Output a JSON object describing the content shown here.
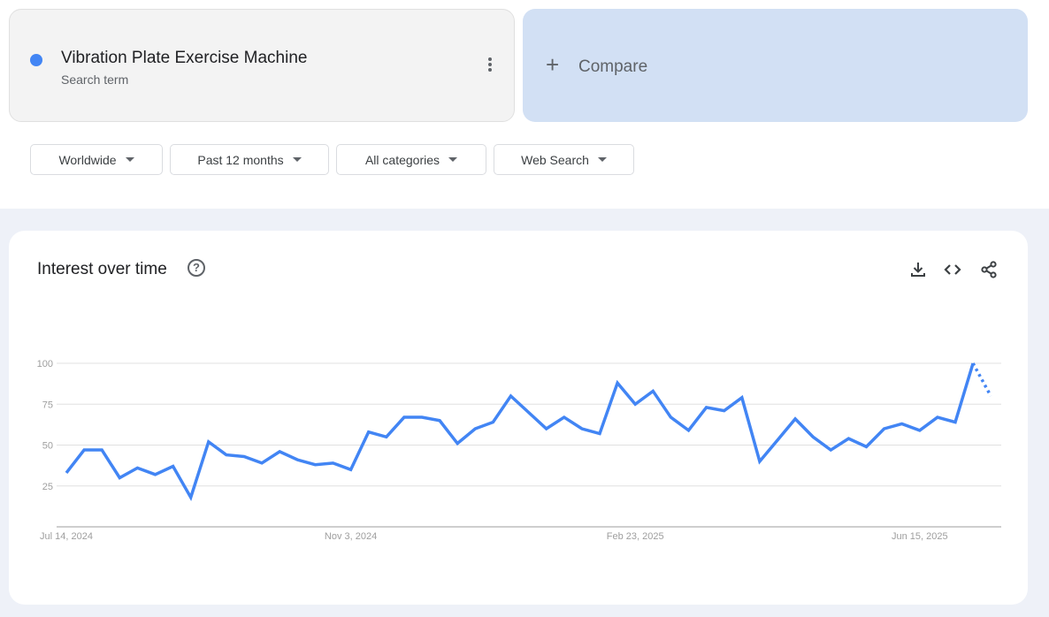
{
  "search_term": {
    "title": "Vibration Plate Exercise Machine",
    "subtitle": "Search term",
    "color": "#4285f4",
    "menu_icon": "more-vert-icon"
  },
  "compare": {
    "label": "Compare",
    "icon": "plus-icon"
  },
  "filters": [
    {
      "label": "Worldwide"
    },
    {
      "label": "Past 12 months"
    },
    {
      "label": "All categories"
    },
    {
      "label": "Web Search"
    }
  ],
  "card": {
    "title": "Interest over time",
    "icons": [
      "help-icon",
      "download-icon",
      "embed-code-icon",
      "share-icon"
    ]
  },
  "chart_data": {
    "type": "line",
    "title": "",
    "xlabel": "",
    "ylabel": "",
    "ylim": [
      0,
      100
    ],
    "yticks": [
      25,
      50,
      75,
      100
    ],
    "xtick_labels": [
      "Jul 14, 2024",
      "Nov 3, 2024",
      "Feb 23, 2025",
      "Jun 15, 2025"
    ],
    "xtick_indices": [
      0,
      16,
      32,
      48
    ],
    "grid": true,
    "line_color": "#4285f4",
    "x_start": "Jul 14, 2024",
    "x_interval": "weekly",
    "values": [
      33,
      47,
      47,
      30,
      36,
      32,
      37,
      18,
      52,
      44,
      43,
      39,
      46,
      41,
      38,
      39,
      35,
      58,
      55,
      67,
      67,
      65,
      51,
      60,
      64,
      80,
      70,
      60,
      67,
      60,
      57,
      88,
      75,
      83,
      67,
      59,
      73,
      71,
      79,
      40,
      53,
      66,
      55,
      47,
      54,
      49,
      60,
      63,
      59,
      67,
      64,
      100
    ],
    "partial_value": 80
  }
}
